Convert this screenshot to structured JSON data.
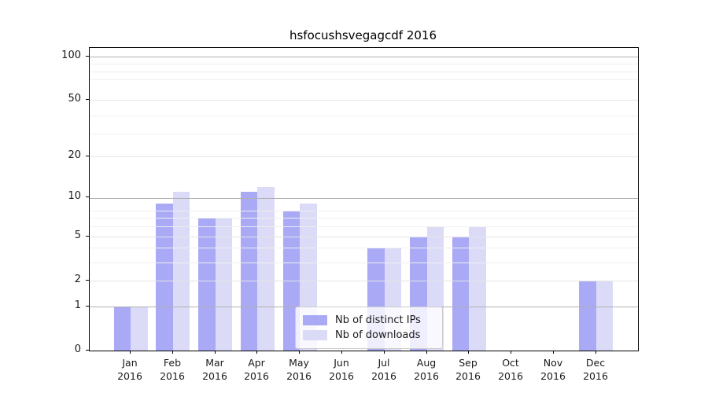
{
  "title": "hsfocushsvegagcdf 2016",
  "chart_data": {
    "type": "bar",
    "title": "hsfocushsvegagcdf 2016",
    "categories": [
      "Jan 2016",
      "Feb 2016",
      "Mar 2016",
      "Apr 2016",
      "May 2016",
      "Jun 2016",
      "Jul 2016",
      "Aug 2016",
      "Sep 2016",
      "Oct 2016",
      "Nov 2016",
      "Dec 2016"
    ],
    "series": [
      {
        "name": "Nb of distinct IPs",
        "color": "#a9a9f6",
        "values": [
          1,
          9,
          7,
          11,
          8,
          0,
          4,
          5,
          5,
          0,
          0,
          2
        ]
      },
      {
        "name": "Nb of downloads",
        "color": "#dbdbf8",
        "values": [
          1,
          11,
          7,
          12,
          9,
          0,
          4,
          6,
          6,
          0,
          0,
          2
        ]
      }
    ],
    "yscale": "log1p",
    "ylim": [
      0,
      114
    ],
    "yticks": [
      0,
      1,
      2,
      5,
      10,
      20,
      50,
      100
    ],
    "grid": "on",
    "legend_position": "lower center",
    "colors": {
      "major_grid": "#b0b0b0",
      "labeled_minor_grid": "#e4e4e4",
      "minor_grid": "#efefef",
      "spine": "#000000",
      "background": "#ffffff"
    }
  }
}
